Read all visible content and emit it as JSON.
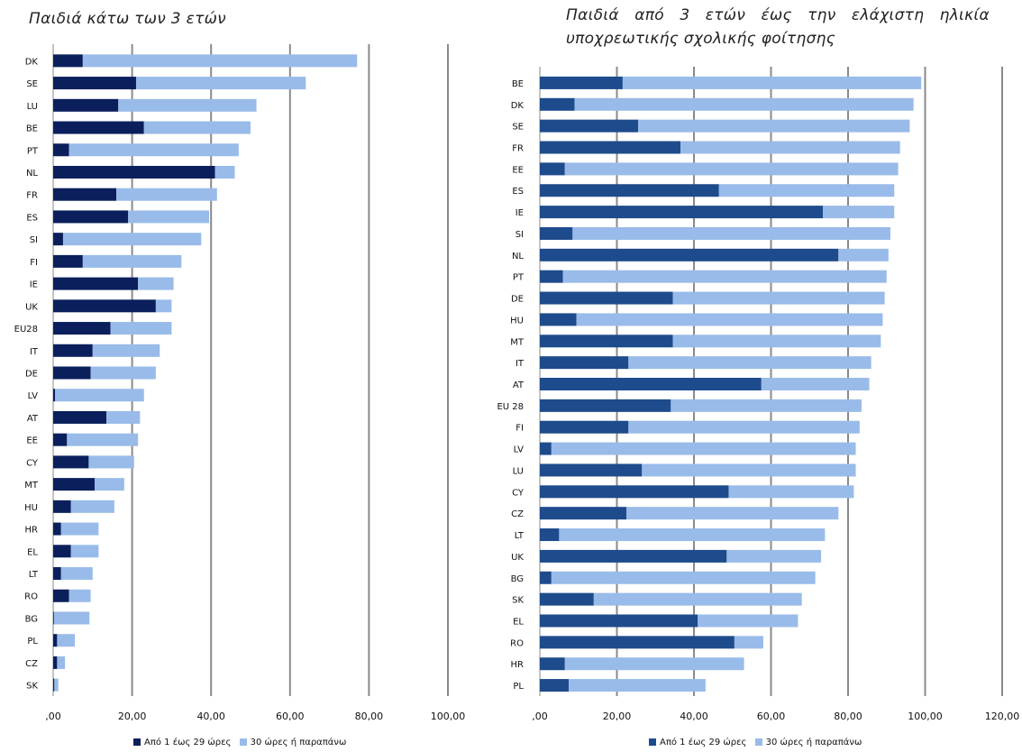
{
  "chart_data": [
    {
      "type": "bar",
      "orientation": "horizontal",
      "stacked": true,
      "title": "Παιδιά κάτω των 3 ετών",
      "categories": [
        "DK",
        "SE",
        "LU",
        "BE",
        "PT",
        "NL",
        "FR",
        "ES",
        "SI",
        "FI",
        "IE",
        "UK",
        "EU28",
        "IT",
        "DE",
        "LV",
        "AT",
        "EE",
        "CY",
        "MT",
        "HU",
        "HR",
        "EL",
        "LT",
        "RO",
        "BG",
        "PL",
        "CZ",
        "SK"
      ],
      "series": [
        {
          "name": "Από 1 έως 29 ώρες",
          "color": "#0a1f5c",
          "values": [
            7.5,
            21,
            16.5,
            23,
            4,
            41,
            16,
            19,
            2.5,
            7.5,
            21.5,
            26,
            14.5,
            10,
            9.5,
            0.5,
            13.5,
            3.5,
            9,
            10.5,
            4.5,
            2,
            4.5,
            2,
            4,
            0.2,
            1,
            1,
            0.3
          ]
        },
        {
          "name": "30 ώρες ή παραπάνω",
          "color": "#99bbe9",
          "values": [
            69.5,
            43,
            35,
            27,
            43,
            5,
            25.5,
            20.5,
            35,
            25,
            9,
            4,
            15.5,
            17,
            16.5,
            22.5,
            8.5,
            18,
            11.5,
            7.5,
            11,
            9.5,
            7,
            8,
            5.5,
            9,
            4.5,
            2,
            1
          ]
        }
      ],
      "x_ticks": [
        ",00",
        "20,00",
        "40,00",
        "60,00",
        "80,00",
        "100,00"
      ],
      "xlim": [
        0,
        100
      ],
      "grid": "vertical",
      "legend_position": "bottom"
    },
    {
      "type": "bar",
      "orientation": "horizontal",
      "stacked": true,
      "title": "Παιδιά από 3 ετών έως την ελάχιστη ηλικία υποχρεωτικής σχολικής φοίτησης",
      "categories": [
        "BE",
        "DK",
        "SE",
        "FR",
        "EE",
        "ES",
        "IE",
        "SI",
        "NL",
        "PT",
        "DE",
        "HU",
        "MT",
        "IT",
        "AT",
        "EU 28",
        "FI",
        "LV",
        "LU",
        "CY",
        "CZ",
        "LT",
        "UK",
        "BG",
        "SK",
        "EL",
        "RO",
        "HR",
        "PL"
      ],
      "series": [
        {
          "name": "Από 1 έως 29 ώρες",
          "color": "#1e4b8c",
          "values": [
            21.5,
            9,
            25.5,
            36.5,
            6.5,
            46.5,
            73.5,
            8.5,
            77.5,
            6,
            34.5,
            9.5,
            34.5,
            23,
            57.5,
            34,
            23,
            3,
            26.5,
            49,
            22.5,
            5,
            48.5,
            3,
            14,
            41,
            50.5,
            6.5,
            7.5
          ]
        },
        {
          "name": "30 ώρες ή παραπάνω",
          "color": "#99bbe9",
          "values": [
            77.5,
            88,
            70.5,
            57,
            86.5,
            45.5,
            18.5,
            82.5,
            13,
            84,
            55,
            79.5,
            54,
            63,
            28,
            49.5,
            60,
            79,
            55.5,
            32.5,
            55,
            69,
            24.5,
            68.5,
            54,
            26,
            7.5,
            46.5,
            35.5
          ]
        }
      ],
      "x_ticks": [
        ",00",
        "20,00",
        "40,00",
        "60,00",
        "80,00",
        "100,00",
        "120,00"
      ],
      "xlim": [
        0,
        120
      ],
      "grid": "vertical",
      "legend_position": "bottom"
    }
  ]
}
